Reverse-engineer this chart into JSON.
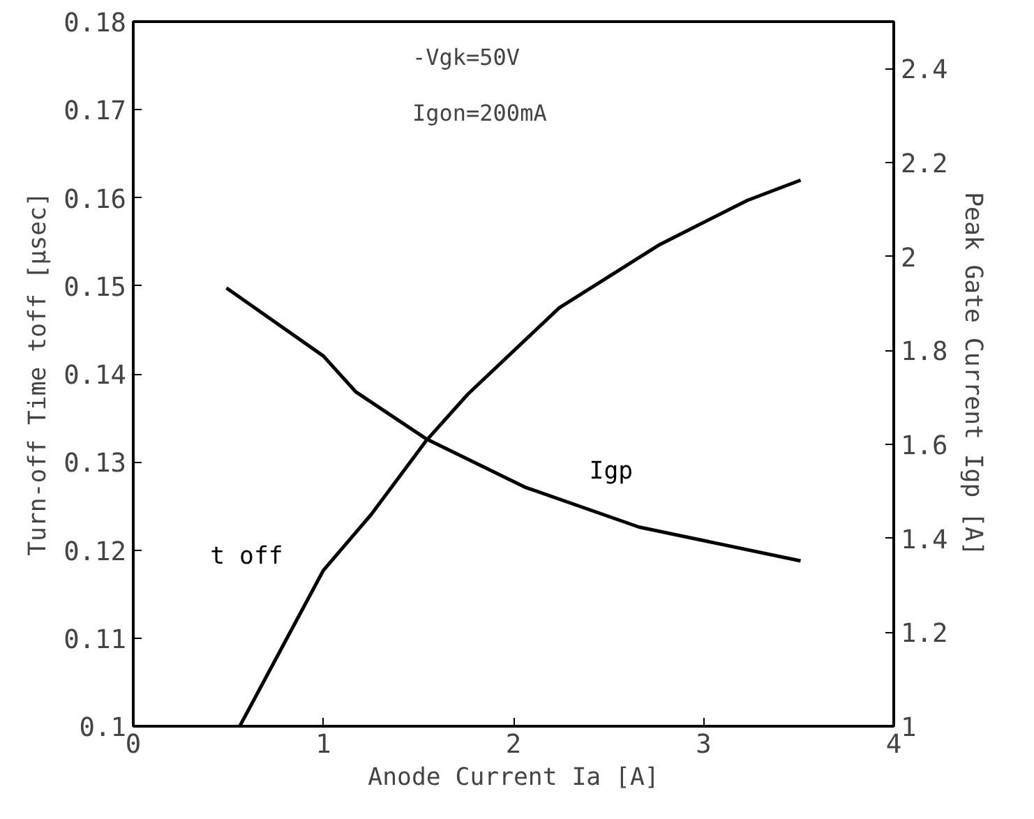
{
  "chart_data": {
    "type": "line",
    "xlabel": "Anode Current Ia [A]",
    "ylabel": "Turn-off Time toff [μsec]",
    "y2label": "Peak Gate Current Igp [A]",
    "annotations": [
      "-Vgk=50V",
      "Igon=200mA"
    ],
    "xlim": [
      0,
      4
    ],
    "xticks": [
      0,
      1,
      2,
      3,
      4
    ],
    "ylim": [
      0.1,
      0.18
    ],
    "yticks": [
      0.1,
      0.11,
      0.12,
      0.13,
      0.14,
      0.15,
      0.16,
      0.17,
      0.18
    ],
    "y2lim": [
      1,
      2.5
    ],
    "y2ticks": [
      1,
      1.2,
      1.4,
      1.6,
      1.8,
      2,
      2.2,
      2.4
    ],
    "grid": false,
    "marker": "none",
    "line_style": "solid",
    "series": [
      {
        "name": "t off",
        "color": "#000000",
        "x": [
          0.56,
          1.0,
          1.25,
          1.54,
          1.76,
          2.24,
          2.77,
          3.23,
          3.51
        ],
        "values": [
          0.1,
          0.1177,
          0.124,
          0.1324,
          0.1377,
          0.1475,
          0.1547,
          0.1597,
          0.162
        ]
      },
      {
        "name": "Igp",
        "color": "#000000",
        "axis": "y2",
        "x": [
          0.49,
          1.0,
          1.17,
          1.54,
          2.06,
          2.66,
          3.51
        ],
        "values": [
          1.933,
          1.788,
          1.712,
          1.612,
          1.509,
          1.424,
          1.352
        ]
      }
    ]
  }
}
